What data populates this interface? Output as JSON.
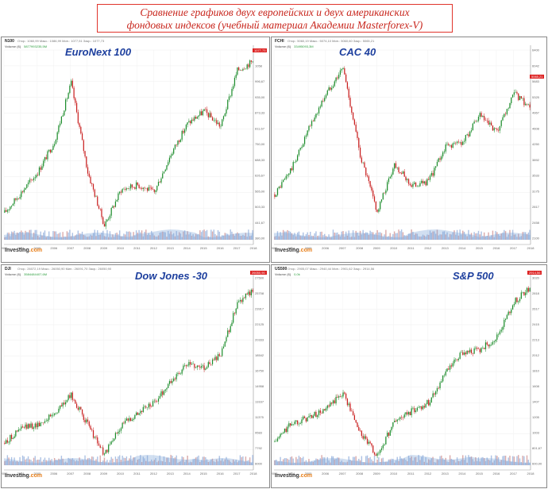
{
  "title": {
    "line1": "Сравнение графиков двух европейских и двух американских",
    "line2": "фондовых индексов (учебный материал Академии Masterforex-V)"
  },
  "panels": [
    {
      "ticker": "N100",
      "ohlc": "Откр.: 1060,99 Макс.: 1086,99 Мин.: 1077,51 Закр.: 1077,73",
      "volume_label": "Volume (6)",
      "volume_value": "5877993235,5M",
      "name": "EuroNext 100",
      "brand": "Investing",
      "brand_suffix": ".com",
      "last_price": "1077,73"
    },
    {
      "ticker": "FCHI",
      "ohlc": "Откр.: 5060,19 Макс.: 5074,10 Мин.: 5060,60 Закр.: 5065,21",
      "volume_label": "Volume (6)",
      "volume_value": "33495093,3M",
      "name": "CAC 40",
      "brand": "Investing",
      "brand_suffix": ".com",
      "last_price": "5065,21"
    },
    {
      "ticker": "DJI",
      "ohlc": "Откр.: 26072,19 Макс.: 26050,90 Мин.: 26091,70 Закр.: 26050,90",
      "volume_label": "Volume (6)",
      "volume_value": "3584484407,6M",
      "name": "Dow Jones -30",
      "brand": "Investing",
      "brand_suffix": ".com",
      "last_price": "26050,90"
    },
    {
      "ticker": "US500",
      "ohlc": "Откр.: 2905,07 Макс.: 2940,44 Мин.: 2901,62 Закр.: 2914,56",
      "volume_label": "Volume (6)",
      "volume_value": "0,0k",
      "name": "S&P 500",
      "brand": "Investing",
      "brand_suffix": ".com",
      "last_price": "2914,56"
    }
  ],
  "chart_data": [
    {
      "type": "line",
      "title": "EuroNext 100",
      "x": [
        "2003",
        "2004",
        "2005",
        "2006",
        "2007",
        "2008",
        "2009",
        "2010",
        "2011",
        "2012",
        "2013",
        "2014",
        "2015",
        "2016",
        "2017",
        "2018"
      ],
      "series": [
        {
          "values": [
            480,
            560,
            640,
            760,
            990,
            640,
            430,
            570,
            590,
            560,
            710,
            830,
            880,
            820,
            1040,
            1078
          ]
        }
      ],
      "ylim": [
        380,
        1120
      ],
      "colors": {
        "up": "#1c8c2b",
        "down": "#c81e1e",
        "volume": "#7aa3d6"
      }
    },
    {
      "type": "line",
      "title": "CAC 40",
      "x": [
        "2003",
        "2004",
        "2005",
        "2006",
        "2007",
        "2008",
        "2009",
        "2010",
        "2011",
        "2012",
        "2013",
        "2014",
        "2015",
        "2016",
        "2017",
        "2018"
      ],
      "series": [
        {
          "values": [
            3100,
            3700,
            4600,
            5400,
            6000,
            4000,
            2700,
            3800,
            3300,
            3400,
            4200,
            4300,
            4900,
            4500,
            5400,
            5065
          ]
        }
      ],
      "ylim": [
        2100,
        6400
      ],
      "colors": {
        "up": "#1c8c2b",
        "down": "#c81e1e",
        "volume": "#7aa3d6"
      }
    },
    {
      "type": "line",
      "title": "Dow Jones -30",
      "x": [
        "2003",
        "2004",
        "2005",
        "2006",
        "2007",
        "2008",
        "2009",
        "2010",
        "2011",
        "2012",
        "2013",
        "2014",
        "2015",
        "2016",
        "2017",
        "2018"
      ],
      "series": [
        {
          "values": [
            8400,
            10100,
            10500,
            11800,
            13900,
            10500,
            7000,
            10400,
            11900,
            13000,
            15500,
            17500,
            17200,
            18500,
            24700,
            26050
          ]
        }
      ],
      "ylim": [
        6000,
        27500
      ],
      "colors": {
        "up": "#1c8c2b",
        "down": "#c81e1e",
        "volume": "#7aa3d6"
      }
    },
    {
      "type": "line",
      "title": "S&P 500",
      "x": [
        "2003",
        "2004",
        "2005",
        "2006",
        "2007",
        "2008",
        "2009",
        "2010",
        "2011",
        "2012",
        "2013",
        "2014",
        "2015",
        "2016",
        "2017",
        "2018"
      ],
      "series": [
        {
          "values": [
            880,
            1130,
            1200,
            1300,
            1530,
            1000,
            700,
            1150,
            1280,
            1400,
            1780,
            2050,
            2080,
            2250,
            2700,
            2914
          ]
        }
      ],
      "ylim": [
        600,
        3020
      ],
      "colors": {
        "up": "#1c8c2b",
        "down": "#c81e1e",
        "volume": "#7aa3d6"
      }
    }
  ]
}
